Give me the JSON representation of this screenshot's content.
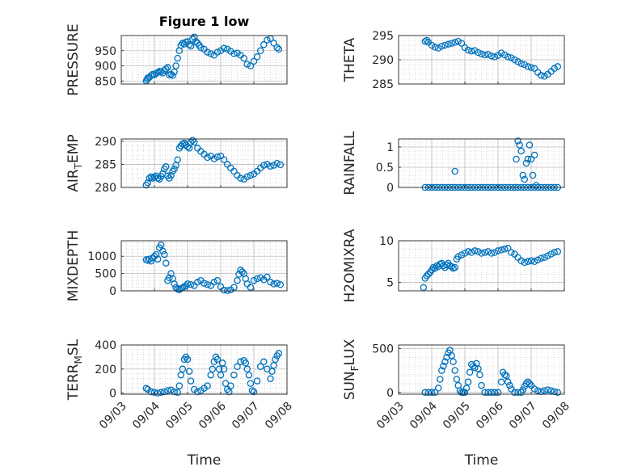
{
  "colors": {
    "marker": "#0072BD",
    "axis": "#262626",
    "grid": "#c8c8c8",
    "background": "#ffffff"
  },
  "chart_data": [
    {
      "type": "scatter",
      "title": "Figure 1 low",
      "ylabel": "PRESSURE",
      "x_range": [
        "09/03",
        "09/08"
      ],
      "ylim": [
        840,
        1000
      ],
      "yticks": [
        850,
        900,
        950
      ],
      "grid": true,
      "series": [
        {
          "x": [
            0.75,
            0.78,
            0.8,
            0.85,
            0.9,
            0.95,
            1.0,
            1.05,
            1.1,
            1.15,
            1.2,
            1.25,
            1.3,
            1.35,
            1.4,
            1.45,
            1.5,
            1.55,
            1.6,
            1.65,
            1.7,
            1.75,
            1.8,
            1.85,
            1.9,
            1.95,
            2.0,
            2.05,
            2.1,
            2.15,
            2.2,
            2.25,
            2.3,
            2.35,
            2.4,
            2.5,
            2.6,
            2.7,
            2.8,
            2.9,
            3.0,
            3.1,
            3.2,
            3.3,
            3.4,
            3.5,
            3.6,
            3.7,
            3.8,
            3.9,
            4.0,
            4.1,
            4.2,
            4.3,
            4.4,
            4.5,
            4.6,
            4.7,
            4.75
          ],
          "y": [
            850,
            855,
            860,
            862,
            868,
            872,
            870,
            875,
            878,
            882,
            880,
            876,
            885,
            890,
            895,
            870,
            872,
            868,
            880,
            900,
            925,
            950,
            968,
            975,
            972,
            978,
            980,
            970,
            965,
            988,
            995,
            980,
            975,
            968,
            960,
            955,
            945,
            940,
            935,
            945,
            950,
            958,
            955,
            948,
            940,
            942,
            935,
            925,
            905,
            900,
            915,
            930,
            950,
            970,
            985,
            990,
            975,
            960,
            955
          ]
        }
      ]
    },
    {
      "type": "scatter",
      "ylabel": "THETA",
      "x_range": [
        "09/03",
        "09/08"
      ],
      "ylim": [
        285,
        295
      ],
      "yticks": [
        285,
        290,
        295
      ],
      "grid": true,
      "series": [
        {
          "x": [
            0.8,
            0.85,
            0.9,
            1.0,
            1.1,
            1.2,
            1.3,
            1.4,
            1.5,
            1.6,
            1.7,
            1.8,
            1.9,
            2.0,
            2.1,
            2.2,
            2.3,
            2.4,
            2.5,
            2.6,
            2.7,
            2.8,
            2.9,
            3.0,
            3.1,
            3.2,
            3.3,
            3.4,
            3.5,
            3.6,
            3.7,
            3.8,
            3.9,
            4.0,
            4.1,
            4.2,
            4.3,
            4.4,
            4.5,
            4.6,
            4.7,
            4.8
          ],
          "y": [
            293.8,
            294.0,
            293.6,
            293.0,
            292.6,
            292.4,
            292.8,
            293.0,
            293.2,
            293.4,
            293.6,
            293.8,
            293.4,
            292.5,
            292.0,
            291.8,
            291.9,
            291.5,
            291.2,
            291.0,
            291.1,
            290.8,
            290.6,
            290.9,
            291.4,
            291.0,
            290.6,
            290.4,
            290.0,
            289.6,
            289.2,
            289.0,
            288.6,
            288.4,
            288.2,
            287.4,
            286.8,
            286.6,
            287.0,
            287.6,
            288.2,
            288.6
          ]
        }
      ]
    },
    {
      "type": "scatter",
      "ylabel": "AIR_TEMP",
      "x_range": [
        "09/03",
        "09/08"
      ],
      "ylim": [
        280,
        290.5
      ],
      "yticks": [
        280,
        285,
        290
      ],
      "grid": true,
      "series": [
        {
          "x": [
            0.75,
            0.8,
            0.85,
            0.9,
            0.95,
            1.0,
            1.05,
            1.1,
            1.15,
            1.2,
            1.25,
            1.3,
            1.35,
            1.4,
            1.45,
            1.5,
            1.55,
            1.6,
            1.65,
            1.7,
            1.75,
            1.8,
            1.85,
            1.9,
            1.95,
            2.0,
            2.05,
            2.1,
            2.15,
            2.2,
            2.3,
            2.4,
            2.5,
            2.6,
            2.7,
            2.8,
            2.9,
            3.0,
            3.1,
            3.2,
            3.3,
            3.4,
            3.5,
            3.6,
            3.7,
            3.8,
            3.9,
            4.0,
            4.1,
            4.2,
            4.3,
            4.4,
            4.5,
            4.6,
            4.7,
            4.8
          ],
          "y": [
            280.5,
            281.0,
            282.0,
            282.3,
            282.0,
            282.2,
            282.5,
            282.0,
            281.8,
            282.4,
            283.0,
            284.0,
            284.5,
            282.5,
            282.0,
            282.6,
            283.5,
            284.0,
            284.8,
            286.0,
            288.5,
            289.0,
            289.4,
            289.6,
            289.2,
            288.8,
            288.5,
            289.8,
            290.2,
            289.8,
            288.5,
            287.8,
            287.2,
            286.5,
            286.8,
            286.2,
            286.6,
            286.8,
            286.0,
            285.0,
            284.2,
            283.5,
            282.6,
            282.0,
            281.8,
            282.3,
            282.6,
            282.9,
            283.5,
            284.2,
            284.8,
            285.0,
            284.6,
            284.8,
            285.2,
            284.9
          ]
        }
      ]
    },
    {
      "type": "scatter",
      "ylabel": "RAINFALL",
      "x_range": [
        "09/03",
        "09/08"
      ],
      "ylim": [
        0,
        1.2
      ],
      "yticks": [
        0,
        0.5,
        1
      ],
      "grid": true,
      "series": [
        {
          "x": [
            0.8,
            0.9,
            1.0,
            1.1,
            1.2,
            1.3,
            1.4,
            1.5,
            1.6,
            1.7,
            1.8,
            1.9,
            2.0,
            2.1,
            2.2,
            2.3,
            2.4,
            2.5,
            2.6,
            2.7,
            2.8,
            2.9,
            3.0,
            3.1,
            3.2,
            3.3,
            3.4,
            3.5,
            3.6,
            3.7,
            3.8,
            3.9,
            4.0,
            4.1,
            4.2,
            4.3,
            4.4,
            4.5,
            4.6,
            4.7,
            4.8,
            1.7,
            3.55,
            3.6,
            3.65,
            3.7,
            3.75,
            3.8,
            3.85,
            3.9,
            3.95,
            4.0,
            4.05,
            4.1,
            4.15
          ],
          "y": [
            0,
            0,
            0,
            0,
            0,
            0,
            0,
            0,
            0,
            0,
            0,
            0,
            0,
            0,
            0,
            0,
            0,
            0,
            0,
            0,
            0,
            0,
            0,
            0,
            0,
            0,
            0,
            0,
            0,
            0,
            0,
            0,
            0,
            0,
            0,
            0,
            0,
            0,
            0,
            0,
            0,
            0.4,
            0.7,
            1.15,
            1.05,
            0.9,
            0.3,
            0.2,
            0.6,
            0.7,
            1.05,
            0.7,
            0.3,
            0.8,
            0.05
          ]
        }
      ]
    },
    {
      "type": "scatter",
      "ylabel": "MIXDEPTH",
      "x_range": [
        "09/03",
        "09/08"
      ],
      "ylim": [
        0,
        1450
      ],
      "yticks": [
        0,
        500,
        1000
      ],
      "grid": true,
      "series": [
        {
          "x": [
            0.75,
            0.8,
            0.85,
            0.9,
            0.95,
            1.0,
            1.05,
            1.1,
            1.15,
            1.2,
            1.25,
            1.3,
            1.35,
            1.4,
            1.45,
            1.5,
            1.55,
            1.6,
            1.65,
            1.7,
            1.75,
            1.8,
            1.85,
            1.9,
            1.95,
            2.0,
            2.1,
            2.2,
            2.3,
            2.4,
            2.5,
            2.6,
            2.7,
            2.8,
            2.9,
            3.0,
            3.1,
            3.2,
            3.3,
            3.4,
            3.5,
            3.55,
            3.6,
            3.65,
            3.7,
            3.75,
            3.8,
            3.9,
            4.0,
            4.1,
            4.2,
            4.3,
            4.4,
            4.5,
            4.6,
            4.7,
            4.8
          ],
          "y": [
            900,
            880,
            920,
            860,
            950,
            1000,
            1050,
            920,
            1250,
            1330,
            1150,
            1050,
            800,
            300,
            380,
            500,
            350,
            200,
            100,
            50,
            30,
            70,
            90,
            120,
            150,
            200,
            180,
            150,
            250,
            300,
            220,
            180,
            150,
            250,
            300,
            120,
            20,
            10,
            30,
            100,
            300,
            480,
            600,
            550,
            500,
            350,
            200,
            100,
            300,
            350,
            380,
            320,
            400,
            250,
            200,
            220,
            180
          ]
        }
      ]
    },
    {
      "type": "scatter",
      "ylabel": "H2OMIXRA",
      "x_range": [
        "09/03",
        "09/08"
      ],
      "ylim": [
        4,
        10
      ],
      "yticks": [
        5,
        10
      ],
      "grid": true,
      "series": [
        {
          "x": [
            0.75,
            0.8,
            0.85,
            0.9,
            0.95,
            1.0,
            1.05,
            1.1,
            1.15,
            1.2,
            1.25,
            1.3,
            1.35,
            1.4,
            1.45,
            1.5,
            1.55,
            1.6,
            1.65,
            1.7,
            1.75,
            1.8,
            1.9,
            2.0,
            2.1,
            2.2,
            2.3,
            2.4,
            2.5,
            2.6,
            2.7,
            2.8,
            2.9,
            3.0,
            3.1,
            3.2,
            3.3,
            3.4,
            3.5,
            3.6,
            3.7,
            3.8,
            3.9,
            4.0,
            4.1,
            4.2,
            4.3,
            4.4,
            4.5,
            4.6,
            4.7,
            4.8
          ],
          "y": [
            4.4,
            5.5,
            5.8,
            6.0,
            6.2,
            6.5,
            6.8,
            6.7,
            7.0,
            6.9,
            7.2,
            7.3,
            7.0,
            6.8,
            7.1,
            7.3,
            7.0,
            6.9,
            6.7,
            6.8,
            7.8,
            8.1,
            8.3,
            8.5,
            8.7,
            8.6,
            8.8,
            8.7,
            8.5,
            8.6,
            8.7,
            8.5,
            8.6,
            8.8,
            8.9,
            9.0,
            9.1,
            8.6,
            8.4,
            8.0,
            7.6,
            7.4,
            7.5,
            7.6,
            7.5,
            7.7,
            7.9,
            8.0,
            8.2,
            8.4,
            8.6,
            8.7
          ]
        }
      ]
    },
    {
      "type": "scatter",
      "ylabel": "TERR_MSL",
      "x_range": [
        "09/03",
        "09/08"
      ],
      "ylim": [
        -10,
        400
      ],
      "yticks": [
        0,
        200,
        400
      ],
      "grid": true,
      "series": [
        {
          "x": [
            0.75,
            0.8,
            0.9,
            1.0,
            1.1,
            1.2,
            1.3,
            1.4,
            1.5,
            1.6,
            1.7,
            1.75,
            1.8,
            1.85,
            1.9,
            1.95,
            2.0,
            2.05,
            2.1,
            2.2,
            2.3,
            2.4,
            2.5,
            2.6,
            2.7,
            2.75,
            2.8,
            2.85,
            2.9,
            2.95,
            3.0,
            3.05,
            3.1,
            3.15,
            3.2,
            3.25,
            3.3,
            3.4,
            3.5,
            3.6,
            3.7,
            3.75,
            3.8,
            3.85,
            3.9,
            3.95,
            4.0,
            4.1,
            4.2,
            4.3,
            4.4,
            4.5,
            4.55,
            4.6,
            4.65,
            4.7,
            4.75
          ],
          "y": [
            40,
            30,
            10,
            5,
            0,
            5,
            10,
            20,
            25,
            10,
            5,
            60,
            150,
            200,
            280,
            300,
            280,
            180,
            100,
            30,
            10,
            20,
            40,
            60,
            150,
            200,
            260,
            300,
            280,
            200,
            150,
            250,
            200,
            80,
            30,
            10,
            60,
            150,
            220,
            260,
            270,
            250,
            200,
            150,
            80,
            20,
            10,
            100,
            220,
            260,
            200,
            120,
            180,
            230,
            280,
            310,
            330
          ]
        }
      ]
    },
    {
      "type": "scatter",
      "ylabel": "SUN_FLUX",
      "x_range": [
        "09/03",
        "09/08"
      ],
      "ylim": [
        -20,
        540
      ],
      "yticks": [
        0,
        500
      ],
      "grid": true,
      "series": [
        {
          "x": [
            0.8,
            0.9,
            1.0,
            1.1,
            1.2,
            1.25,
            1.3,
            1.35,
            1.4,
            1.45,
            1.5,
            1.55,
            1.6,
            1.65,
            1.7,
            1.75,
            1.8,
            1.85,
            1.9,
            1.95,
            2.0,
            2.05,
            2.1,
            2.15,
            2.2,
            2.25,
            2.3,
            2.35,
            2.4,
            2.45,
            2.5,
            2.6,
            2.7,
            2.8,
            2.9,
            3.0,
            3.1,
            3.15,
            3.2,
            3.25,
            3.3,
            3.35,
            3.4,
            3.5,
            3.6,
            3.7,
            3.75,
            3.8,
            3.85,
            3.9,
            3.95,
            4.0,
            4.1,
            4.2,
            4.3,
            4.4,
            4.5,
            4.6,
            4.7,
            4.8
          ],
          "y": [
            0,
            0,
            0,
            0,
            50,
            150,
            250,
            300,
            350,
            400,
            450,
            480,
            420,
            350,
            250,
            150,
            80,
            20,
            0,
            0,
            0,
            50,
            120,
            230,
            320,
            300,
            280,
            330,
            270,
            200,
            80,
            0,
            0,
            0,
            0,
            0,
            120,
            230,
            200,
            190,
            120,
            80,
            40,
            0,
            0,
            0,
            30,
            70,
            100,
            120,
            100,
            80,
            40,
            20,
            10,
            20,
            30,
            20,
            10,
            0
          ]
        }
      ]
    }
  ],
  "axes": [
    {
      "xlabel": "",
      "xticks": []
    },
    {
      "xlabel": "",
      "xticks": []
    },
    {
      "xlabel": "",
      "xticks": []
    },
    {
      "xlabel": "",
      "xticks": []
    },
    {
      "xlabel": "",
      "xticks": []
    },
    {
      "xlabel": "",
      "xticks": []
    },
    {
      "xlabel": "Time",
      "xticks": [
        "09/03",
        "09/04",
        "09/05",
        "09/06",
        "09/07",
        "09/08"
      ]
    },
    {
      "xlabel": "Time",
      "xticks": [
        "09/03",
        "09/04",
        "09/05",
        "09/06",
        "09/07",
        "09/08"
      ]
    }
  ]
}
